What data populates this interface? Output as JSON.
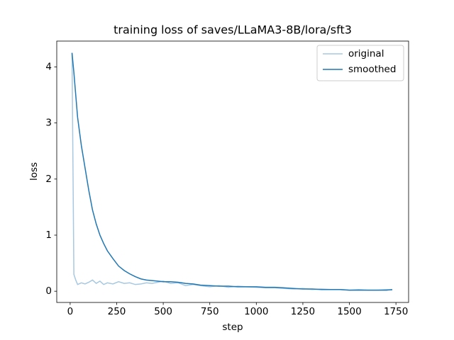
{
  "chart_data": {
    "type": "line",
    "title": "training loss of saves/LLaMA3-8B/lora/sft3",
    "x_label": "step",
    "y_label": "loss",
    "x": [
      10,
      20,
      30,
      40,
      60,
      80,
      100,
      120,
      140,
      160,
      180,
      200,
      230,
      260,
      290,
      320,
      350,
      380,
      410,
      440,
      470,
      500,
      540,
      580,
      620,
      660,
      700,
      750,
      800,
      850,
      900,
      950,
      1000,
      1050,
      1100,
      1150,
      1200,
      1250,
      1300,
      1350,
      1400,
      1450,
      1500,
      1550,
      1600,
      1650,
      1700,
      1730
    ],
    "series": [
      {
        "name": "original",
        "color": "#a6c8e1",
        "values": [
          4.25,
          0.3,
          0.2,
          0.12,
          0.15,
          0.13,
          0.16,
          0.2,
          0.14,
          0.18,
          0.12,
          0.15,
          0.13,
          0.17,
          0.14,
          0.15,
          0.12,
          0.13,
          0.15,
          0.14,
          0.16,
          0.18,
          0.14,
          0.15,
          0.1,
          0.12,
          0.1,
          0.08,
          0.1,
          0.07,
          0.09,
          0.08,
          0.07,
          0.06,
          0.06,
          0.05,
          0.04,
          0.05,
          0.03,
          0.04,
          0.03,
          0.03,
          0.02,
          0.03,
          0.02,
          0.02,
          0.03,
          0.02
        ]
      },
      {
        "name": "smoothed",
        "color": "#1f77b4",
        "values": [
          4.25,
          3.9,
          3.5,
          3.1,
          2.6,
          2.2,
          1.8,
          1.45,
          1.2,
          1.0,
          0.85,
          0.72,
          0.58,
          0.45,
          0.37,
          0.31,
          0.26,
          0.22,
          0.2,
          0.19,
          0.18,
          0.17,
          0.17,
          0.16,
          0.14,
          0.13,
          0.11,
          0.1,
          0.09,
          0.09,
          0.08,
          0.08,
          0.08,
          0.07,
          0.07,
          0.06,
          0.05,
          0.04,
          0.04,
          0.03,
          0.03,
          0.03,
          0.02,
          0.02,
          0.02,
          0.02,
          0.02,
          0.03
        ]
      }
    ],
    "xlim": [
      -72,
      1818
    ],
    "ylim": [
      -0.2,
      4.46
    ],
    "xticks": [
      0,
      250,
      500,
      750,
      1000,
      1250,
      1500,
      1750
    ],
    "yticks": [
      0,
      1,
      2,
      3,
      4
    ],
    "legend": "upper right",
    "grid": false
  }
}
